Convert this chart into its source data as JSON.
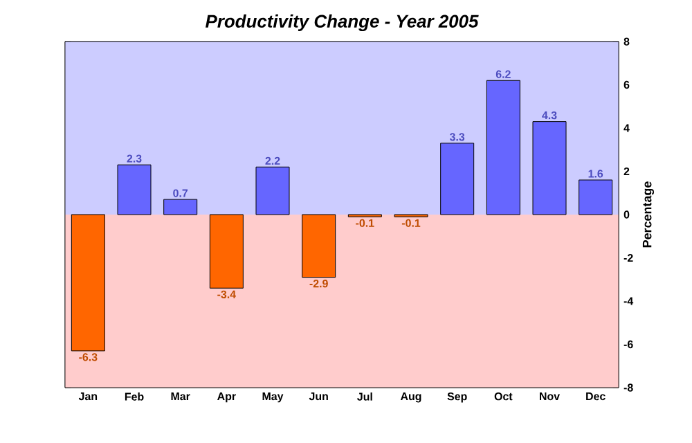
{
  "chart_data": {
    "type": "bar",
    "title": "Productivity Change - Year 2005",
    "ylabel": "Percentage",
    "categories": [
      "Jan",
      "Feb",
      "Mar",
      "Apr",
      "May",
      "Jun",
      "Jul",
      "Aug",
      "Sep",
      "Oct",
      "Nov",
      "Dec"
    ],
    "values": [
      -6.3,
      2.3,
      0.7,
      -3.4,
      2.2,
      -2.9,
      -0.1,
      -0.1,
      3.3,
      6.2,
      4.3,
      1.6
    ],
    "colors": [
      "#ff6600",
      "#6666ff",
      "#6666ff",
      "#ff6600",
      "#6666ff",
      "#ff6600",
      "#ff6600",
      "#ff6600",
      "#6666ff",
      "#6666ff",
      "#6666ff",
      "#6666ff"
    ],
    "ylim": [
      -8,
      8
    ],
    "yticks": [
      -8,
      -6,
      -4,
      -2,
      0,
      2,
      4,
      6,
      8
    ],
    "grid": "y",
    "data_labels": true,
    "bands": [
      {
        "axis": "y",
        "from": 0,
        "to": 8,
        "color": "#ccccff"
      },
      {
        "axis": "y",
        "from": -8,
        "to": 0,
        "color": "#ffcccc"
      }
    ]
  }
}
